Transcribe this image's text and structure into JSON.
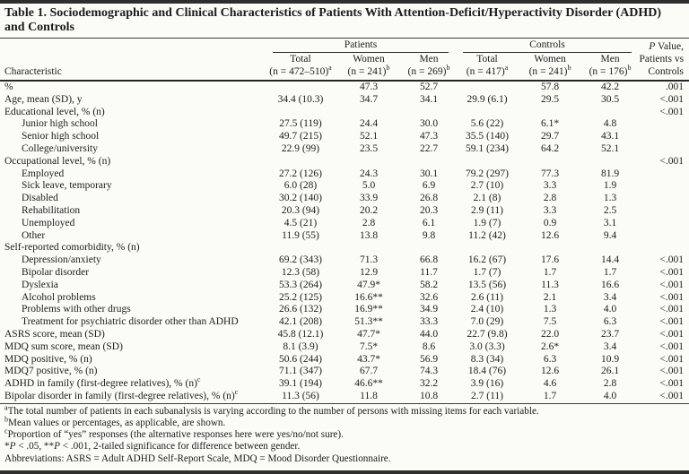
{
  "table": {
    "title": "Table 1. Sociodemographic and Clinical Characteristics of Patients With Attention-Deficit/Hyperactivity Disorder (ADHD) and Controls",
    "header": {
      "characteristic_label": "Characteristic",
      "groups": [
        {
          "label": "Patients",
          "columns": [
            {
              "name": "Total",
              "n": "(n = 472–510)",
              "sup": "a"
            },
            {
              "name": "Women",
              "n": "(n = 241)",
              "sup": "b"
            },
            {
              "name": "Men",
              "n": "(n = 269)",
              "sup": "b"
            }
          ]
        },
        {
          "label": "Controls",
          "columns": [
            {
              "name": "Total",
              "n": "(n = 417)",
              "sup": "a"
            },
            {
              "name": "Women",
              "n": "(n = 241)",
              "sup": "b"
            },
            {
              "name": "Men",
              "n": "(n = 176)",
              "sup": "b"
            }
          ]
        }
      ],
      "pvalue_lines": [
        "P Value,",
        "Patients vs",
        "Controls"
      ]
    },
    "rows": [
      {
        "label": "%",
        "sup": "",
        "indent": 0,
        "values": [
          "",
          "47.3",
          "52.7",
          "",
          "57.8",
          "42.2"
        ],
        "p": ".001"
      },
      {
        "label": "Age, mean (SD), y",
        "sup": "",
        "indent": 0,
        "values": [
          "34.4 (10.3)",
          "34.7",
          "34.1",
          "29.9 (6.1)",
          "29.5",
          "30.5"
        ],
        "p": "<.001"
      },
      {
        "label": "Educational level, % (n)",
        "sup": "",
        "indent": 0,
        "values": [
          "",
          "",
          "",
          "",
          "",
          ""
        ],
        "p": "<.001"
      },
      {
        "label": "Junior high school",
        "sup": "",
        "indent": 1,
        "values": [
          "27.5 (119)",
          "24.4",
          "30.0",
          "5.6 (22)",
          "6.1*",
          "4.8"
        ],
        "p": ""
      },
      {
        "label": "Senior high school",
        "sup": "",
        "indent": 1,
        "values": [
          "49.7 (215)",
          "52.1",
          "47.3",
          "35.5 (140)",
          "29.7",
          "43.1"
        ],
        "p": ""
      },
      {
        "label": "College/university",
        "sup": "",
        "indent": 1,
        "values": [
          "22.9 (99)",
          "23.5",
          "22.7",
          "59.1 (234)",
          "64.2",
          "52.1"
        ],
        "p": ""
      },
      {
        "label": "Occupational level, % (n)",
        "sup": "",
        "indent": 0,
        "values": [
          "",
          "",
          "",
          "",
          "",
          ""
        ],
        "p": "<.001"
      },
      {
        "label": "Employed",
        "sup": "",
        "indent": 1,
        "values": [
          "27.2 (126)",
          "24.3",
          "30.1",
          "79.2 (297)",
          "77.3",
          "81.9"
        ],
        "p": ""
      },
      {
        "label": "Sick leave, temporary",
        "sup": "",
        "indent": 1,
        "values": [
          "6.0 (28)",
          "5.0",
          "6.9",
          "2.7 (10)",
          "3.3",
          "1.9"
        ],
        "p": ""
      },
      {
        "label": "Disabled",
        "sup": "",
        "indent": 1,
        "values": [
          "30.2 (140)",
          "33.9",
          "26.8",
          "2.1 (8)",
          "2.8",
          "1.3"
        ],
        "p": ""
      },
      {
        "label": "Rehabilitation",
        "sup": "",
        "indent": 1,
        "values": [
          "20.3 (94)",
          "20.2",
          "20.3",
          "2.9 (11)",
          "3.3",
          "2.5"
        ],
        "p": ""
      },
      {
        "label": "Unemployed",
        "sup": "",
        "indent": 1,
        "values": [
          "4.5 (21)",
          "2.8",
          "6.1",
          "1.9 (7)",
          "0.9",
          "3.1"
        ],
        "p": ""
      },
      {
        "label": "Other",
        "sup": "",
        "indent": 1,
        "values": [
          "11.9 (55)",
          "13.8",
          "9.8",
          "11.2 (42)",
          "12.6",
          "9.4"
        ],
        "p": ""
      },
      {
        "label": "Self-reported comorbidity, % (n)",
        "sup": "",
        "indent": 0,
        "values": [
          "",
          "",
          "",
          "",
          "",
          ""
        ],
        "p": ""
      },
      {
        "label": "Depression/anxiety",
        "sup": "",
        "indent": 1,
        "values": [
          "69.2 (343)",
          "71.3",
          "66.8",
          "16.2 (67)",
          "17.6",
          "14.4"
        ],
        "p": "<.001"
      },
      {
        "label": "Bipolar disorder",
        "sup": "",
        "indent": 1,
        "values": [
          "12.3 (58)",
          "12.9",
          "11.7",
          "1.7 (7)",
          "1.7",
          "1.7"
        ],
        "p": "<.001"
      },
      {
        "label": "Dyslexia",
        "sup": "",
        "indent": 1,
        "values": [
          "53.3 (264)",
          "47.9*",
          "58.2",
          "13.5 (56)",
          "11.3",
          "16.6"
        ],
        "p": "<.001"
      },
      {
        "label": "Alcohol problems",
        "sup": "",
        "indent": 1,
        "values": [
          "25.2 (125)",
          "16.6**",
          "32.6",
          "2.6 (11)",
          "2.1",
          "3.4"
        ],
        "p": "<.001"
      },
      {
        "label": "Problems with other drugs",
        "sup": "",
        "indent": 1,
        "values": [
          "26.6 (132)",
          "16.9**",
          "34.9",
          "2.4 (10)",
          "1.3",
          "4.0"
        ],
        "p": "<.001"
      },
      {
        "label": "Treatment for psychiatric disorder other than ADHD",
        "sup": "",
        "indent": 1,
        "values": [
          "42.1 (208)",
          "51.3**",
          "33.3",
          "7.0 (29)",
          "7.5",
          "6.3"
        ],
        "p": "<.001"
      },
      {
        "label": "ASRS score, mean (SD)",
        "sup": "",
        "indent": 0,
        "values": [
          "45.8 (12.1)",
          "47.7*",
          "44.0",
          "22.7 (9.8)",
          "22.0",
          "23.7"
        ],
        "p": "<.001"
      },
      {
        "label": "MDQ sum score, mean (SD)",
        "sup": "",
        "indent": 0,
        "values": [
          "8.1 (3.9)",
          "7.5*",
          "8.6",
          "3.0 (3.3)",
          "2.6*",
          "3.4"
        ],
        "p": "<.001"
      },
      {
        "label": "MDQ positive, % (n)",
        "sup": "",
        "indent": 0,
        "values": [
          "50.6 (244)",
          "43.7*",
          "56.9",
          "8.3 (34)",
          "6.3",
          "10.9"
        ],
        "p": "<.001"
      },
      {
        "label": "MDQ7 positive, % (n)",
        "sup": "",
        "indent": 0,
        "values": [
          "71.1 (347)",
          "67.7",
          "74.3",
          "18.4 (76)",
          "12.6",
          "26.1"
        ],
        "p": "<.001"
      },
      {
        "label": "ADHD in family (first-degree relatives), % (n)",
        "sup": "c",
        "indent": 0,
        "values": [
          "39.1 (194)",
          "46.6**",
          "32.2",
          "3.9 (16)",
          "4.6",
          "2.8"
        ],
        "p": "<.001"
      },
      {
        "label": "Bipolar disorder in family (first-degree relatives), % (n)",
        "sup": "c",
        "indent": 0,
        "values": [
          "11.3 (56)",
          "11.8",
          "10.8",
          "2.7 (11)",
          "1.7",
          "4.0"
        ],
        "p": "<.001"
      }
    ],
    "footnotes": [
      {
        "sup": "a",
        "text": "The total number of patients in each subanalysis is varying according to the number of persons with missing items for each variable."
      },
      {
        "sup": "b",
        "text": "Mean values or percentages, as applicable, are shown."
      },
      {
        "sup": "c",
        "text": "Proportion of “yes” responses (the alternative responses here were yes/no/not sure)."
      },
      {
        "sup": "",
        "text": "*P < .05, **P < .001, 2-tailed significance for difference between gender."
      },
      {
        "sup": "",
        "text": "Abbreviations: ASRS = Adult ADHD Self-Report Scale, MDQ = Mood Disorder Questionnaire."
      }
    ]
  }
}
